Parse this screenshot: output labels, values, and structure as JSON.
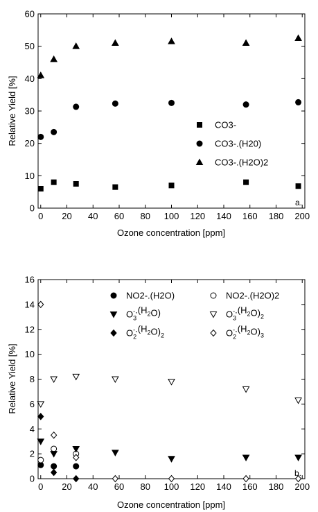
{
  "chart_data": [
    {
      "type": "scatter",
      "panel_label": "a.",
      "xlabel": "Ozone concentration [ppm]",
      "ylabel": "Relative Yield [%]",
      "xlim": [
        -2,
        202
      ],
      "ylim": [
        0,
        60
      ],
      "x_ticks": [
        0,
        20,
        40,
        60,
        80,
        100,
        120,
        140,
        160,
        180,
        200
      ],
      "y_ticks": [
        0,
        10,
        20,
        30,
        40,
        50,
        60
      ],
      "legend_position": "right",
      "series": [
        {
          "name": "CO3-",
          "marker": "square",
          "fill": "#000000",
          "x": [
            0,
            10,
            27,
            57,
            100,
            157,
            197
          ],
          "y": [
            6,
            8,
            7.5,
            6.5,
            7,
            8,
            6.8
          ]
        },
        {
          "name": "CO3-.(H20)",
          "marker": "circle",
          "fill": "#000000",
          "x": [
            0,
            10,
            27,
            57,
            100,
            157,
            197
          ],
          "y": [
            22,
            23.5,
            31.3,
            32.3,
            32.5,
            32,
            32.7
          ]
        },
        {
          "name": "CO3-.(H2O)2",
          "marker": "triangle-up",
          "fill": "#000000",
          "x": [
            0,
            10,
            27,
            57,
            100,
            157,
            197
          ],
          "y": [
            41,
            46,
            50,
            51,
            51.5,
            51,
            52.5
          ]
        }
      ]
    },
    {
      "type": "scatter",
      "panel_label": "b.",
      "xlabel": "Ozone concentration [ppm]",
      "ylabel": "Relative Yield [%]",
      "xlim": [
        -2,
        202
      ],
      "ylim": [
        0,
        16
      ],
      "x_ticks": [
        0,
        20,
        40,
        60,
        80,
        100,
        120,
        140,
        160,
        180,
        200
      ],
      "y_ticks": [
        0,
        2,
        4,
        6,
        8,
        10,
        12,
        14,
        16
      ],
      "legend_position": "top",
      "series": [
        {
          "name": "NO2-.(H2O)",
          "marker": "circle",
          "fill": "#000000",
          "x": [
            0,
            10,
            27
          ],
          "y": [
            1.1,
            1.0,
            1.0
          ]
        },
        {
          "name": "NO2-.(H2O)2",
          "marker": "circle",
          "fill": "none",
          "x": [
            0,
            10,
            27
          ],
          "y": [
            1.5,
            2.4,
            2.0
          ]
        },
        {
          "name": "O3-.(H2O)",
          "marker": "triangle-down",
          "fill": "#000000",
          "x": [
            0,
            10,
            27,
            57,
            100,
            157,
            197
          ],
          "y": [
            3.0,
            2.0,
            2.4,
            2.1,
            1.6,
            1.7,
            1.7
          ]
        },
        {
          "name": "O3-.(H2O)2",
          "marker": "triangle-down",
          "fill": "none",
          "x": [
            0,
            10,
            27,
            57,
            100,
            157,
            197
          ],
          "y": [
            6.0,
            8.0,
            8.2,
            8.0,
            7.8,
            7.2,
            6.3
          ]
        },
        {
          "name": "O2-.(H2O)2",
          "marker": "diamond",
          "fill": "#000000",
          "x": [
            0,
            10,
            27
          ],
          "y": [
            5.0,
            0.5,
            0.0
          ]
        },
        {
          "name": "O2-.(H2O)3",
          "marker": "diamond",
          "fill": "none",
          "x": [
            0,
            10,
            27,
            57,
            100,
            157,
            197
          ],
          "y": [
            14.0,
            3.5,
            1.7,
            0.0,
            0.0,
            0.0,
            0.0
          ]
        }
      ]
    }
  ]
}
